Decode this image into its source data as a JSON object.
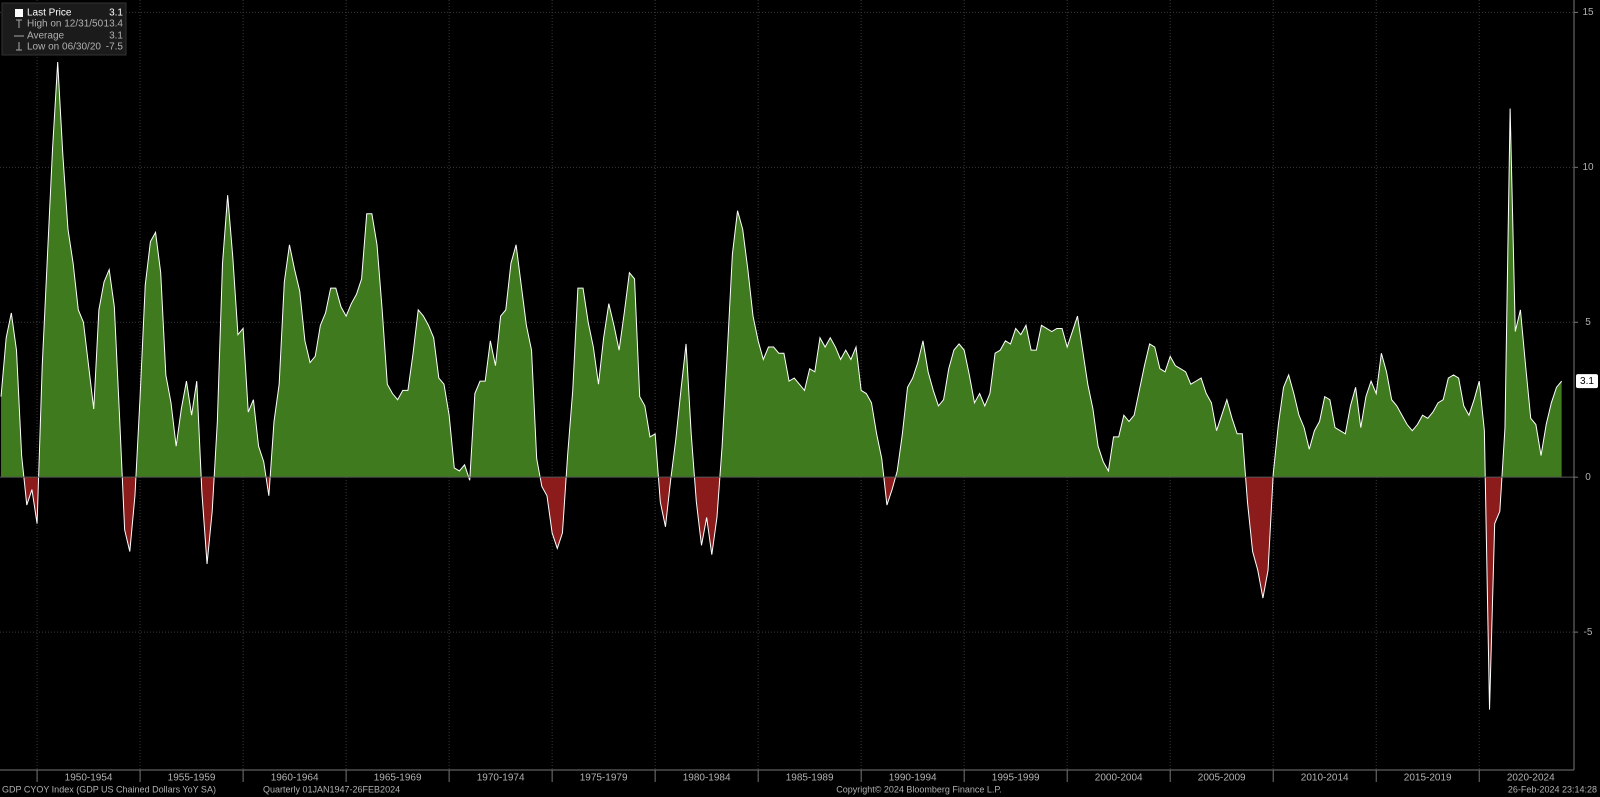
{
  "chart_data": {
    "type": "area",
    "legend": [
      {
        "label": "Last Price",
        "value": 3.1
      },
      {
        "label": "High on 12/31/50",
        "value": 13.4
      },
      {
        "label": "Average",
        "value": 3.1
      },
      {
        "label": "Low on 06/30/20",
        "value": -7.5
      }
    ],
    "source": "GDP CYOY Index (GDP US Chained Dollars YoY SA)",
    "frequency": "Quarterly 01JAN1947-26FEB2024",
    "copyright": "Copyright© 2024 Bloomberg Finance L.P.",
    "timestamp": "26-Feb-2024 23:14:28",
    "positive_color": "#3f7a1e",
    "negative_color": "#8c1c1c",
    "line_color": "#ffffff",
    "grid": true,
    "xlim": [
      1948.2,
      2024.6
    ],
    "ylim": [
      -9.45,
      15.4
    ],
    "yticks": [
      15,
      10,
      5,
      0,
      -5
    ],
    "xticks": [
      {
        "value": 1950,
        "label": "1950-1954"
      },
      {
        "value": 1955,
        "label": "1955-1959"
      },
      {
        "value": 1960,
        "label": "1960-1964"
      },
      {
        "value": 1965,
        "label": "1965-1969"
      },
      {
        "value": 1970,
        "label": "1970-1974"
      },
      {
        "value": 1975,
        "label": "1975-1979"
      },
      {
        "value": 1980,
        "label": "1980-1984"
      },
      {
        "value": 1985,
        "label": "1985-1989"
      },
      {
        "value": 1990,
        "label": "1990-1994"
      },
      {
        "value": 1995,
        "label": "1995-1999"
      },
      {
        "value": 2000,
        "label": "2000-2004"
      },
      {
        "value": 2005,
        "label": "2005-2009"
      },
      {
        "value": 2010,
        "label": "2010-2014"
      },
      {
        "value": 2015,
        "label": "2015-2019"
      },
      {
        "value": 2020,
        "label": "2020-2024"
      }
    ],
    "x": [
      1948.25,
      1948.5,
      1948.75,
      1949,
      1949.25,
      1949.5,
      1949.75,
      1950,
      1950.25,
      1950.5,
      1950.75,
      1951,
      1951.25,
      1951.5,
      1951.75,
      1952,
      1952.25,
      1952.5,
      1952.75,
      1953,
      1953.25,
      1953.5,
      1953.75,
      1954,
      1954.25,
      1954.5,
      1954.75,
      1955,
      1955.25,
      1955.5,
      1955.75,
      1956,
      1956.25,
      1956.5,
      1956.75,
      1957,
      1957.25,
      1957.5,
      1957.75,
      1958,
      1958.25,
      1958.5,
      1958.75,
      1959,
      1959.25,
      1959.5,
      1959.75,
      1960,
      1960.25,
      1960.5,
      1960.75,
      1961,
      1961.25,
      1961.5,
      1961.75,
      1962,
      1962.25,
      1962.5,
      1962.75,
      1963,
      1963.25,
      1963.5,
      1963.75,
      1964,
      1964.25,
      1964.5,
      1964.75,
      1965,
      1965.25,
      1965.5,
      1965.75,
      1966,
      1966.25,
      1966.5,
      1966.75,
      1967,
      1967.25,
      1967.5,
      1967.75,
      1968,
      1968.25,
      1968.5,
      1968.75,
      1969,
      1969.25,
      1969.5,
      1969.75,
      1970,
      1970.25,
      1970.5,
      1970.75,
      1971,
      1971.25,
      1971.5,
      1971.75,
      1972,
      1972.25,
      1972.5,
      1972.75,
      1973,
      1973.25,
      1973.5,
      1973.75,
      1974,
      1974.25,
      1974.5,
      1974.75,
      1975,
      1975.25,
      1975.5,
      1975.75,
      1976,
      1976.25,
      1976.5,
      1976.75,
      1977,
      1977.25,
      1977.5,
      1977.75,
      1978,
      1978.25,
      1978.5,
      1978.75,
      1979,
      1979.25,
      1979.5,
      1979.75,
      1980,
      1980.25,
      1980.5,
      1980.75,
      1981,
      1981.25,
      1981.5,
      1981.75,
      1982,
      1982.25,
      1982.5,
      1982.75,
      1983,
      1983.25,
      1983.5,
      1983.75,
      1984,
      1984.25,
      1984.5,
      1984.75,
      1985,
      1985.25,
      1985.5,
      1985.75,
      1986,
      1986.25,
      1986.5,
      1986.75,
      1987,
      1987.25,
      1987.5,
      1987.75,
      1988,
      1988.25,
      1988.5,
      1988.75,
      1989,
      1989.25,
      1989.5,
      1989.75,
      1990,
      1990.25,
      1990.5,
      1990.75,
      1991,
      1991.25,
      1991.5,
      1991.75,
      1992,
      1992.25,
      1992.5,
      1992.75,
      1993,
      1993.25,
      1993.5,
      1993.75,
      1994,
      1994.25,
      1994.5,
      1994.75,
      1995,
      1995.25,
      1995.5,
      1995.75,
      1996,
      1996.25,
      1996.5,
      1996.75,
      1997,
      1997.25,
      1997.5,
      1997.75,
      1998,
      1998.25,
      1998.5,
      1998.75,
      1999,
      1999.25,
      1999.5,
      1999.75,
      2000,
      2000.25,
      2000.5,
      2000.75,
      2001,
      2001.25,
      2001.5,
      2001.75,
      2002,
      2002.25,
      2002.5,
      2002.75,
      2003,
      2003.25,
      2003.5,
      2003.75,
      2004,
      2004.25,
      2004.5,
      2004.75,
      2005,
      2005.25,
      2005.5,
      2005.75,
      2006,
      2006.25,
      2006.5,
      2006.75,
      2007,
      2007.25,
      2007.5,
      2007.75,
      2008,
      2008.25,
      2008.5,
      2008.75,
      2009,
      2009.25,
      2009.5,
      2009.75,
      2010,
      2010.25,
      2010.5,
      2010.75,
      2011,
      2011.25,
      2011.5,
      2011.75,
      2012,
      2012.25,
      2012.5,
      2012.75,
      2013,
      2013.25,
      2013.5,
      2013.75,
      2014,
      2014.25,
      2014.5,
      2014.75,
      2015,
      2015.25,
      2015.5,
      2015.75,
      2016,
      2016.25,
      2016.5,
      2016.75,
      2017,
      2017.25,
      2017.5,
      2017.75,
      2018,
      2018.25,
      2018.5,
      2018.75,
      2019,
      2019.25,
      2019.5,
      2019.75,
      2020,
      2020.25,
      2020.5,
      2020.75,
      2021,
      2021.25,
      2021.5,
      2021.75,
      2022,
      2022.25,
      2022.5,
      2022.75,
      2023,
      2023.25,
      2023.5,
      2023.75,
      2024
    ],
    "values": [
      2.6,
      4.5,
      5.3,
      4.1,
      0.7,
      -0.9,
      -0.4,
      -1.5,
      3.6,
      7.1,
      10.6,
      13.4,
      10.4,
      8.0,
      6.9,
      5.4,
      5.0,
      3.6,
      2.2,
      5.4,
      6.3,
      6.7,
      5.5,
      2.0,
      -1.7,
      -2.4,
      -0.6,
      2.6,
      6.2,
      7.6,
      7.9,
      6.6,
      3.3,
      2.4,
      1.0,
      2.2,
      3.1,
      2.0,
      3.1,
      -0.5,
      -2.8,
      -1.1,
      1.8,
      6.9,
      9.1,
      7.1,
      4.6,
      4.8,
      2.1,
      2.5,
      1.0,
      0.5,
      -0.6,
      1.8,
      3.0,
      6.3,
      7.5,
      6.7,
      6.0,
      4.4,
      3.7,
      3.9,
      4.9,
      5.3,
      6.1,
      6.1,
      5.5,
      5.2,
      5.6,
      5.9,
      6.4,
      8.5,
      8.5,
      7.5,
      5.4,
      3.0,
      2.7,
      2.5,
      2.8,
      2.8,
      4.0,
      5.4,
      5.2,
      4.9,
      4.5,
      3.2,
      3.0,
      2.0,
      0.3,
      0.2,
      0.4,
      -0.1,
      2.7,
      3.1,
      3.1,
      4.4,
      3.6,
      5.2,
      5.4,
      6.9,
      7.5,
      6.2,
      4.9,
      4.1,
      0.6,
      -0.3,
      -0.6,
      -1.8,
      -2.3,
      -1.8,
      0.7,
      2.8,
      6.1,
      6.1,
      5.0,
      4.2,
      3.0,
      4.5,
      5.6,
      4.9,
      4.1,
      5.3,
      6.6,
      6.4,
      2.6,
      2.3,
      1.3,
      1.4,
      -0.8,
      -1.6,
      -0.1,
      1.2,
      2.8,
      4.3,
      1.4,
      -0.8,
      -2.2,
      -1.3,
      -2.5,
      -1.3,
      1.0,
      4.0,
      7.2,
      8.6,
      8.0,
      6.7,
      5.2,
      4.4,
      3.8,
      4.2,
      4.2,
      4.0,
      4.0,
      3.1,
      3.2,
      3.0,
      2.8,
      3.5,
      3.4,
      4.5,
      4.2,
      4.5,
      4.2,
      3.8,
      4.1,
      3.8,
      4.2,
      2.8,
      2.7,
      2.4,
      1.4,
      0.6,
      -0.9,
      -0.4,
      0.2,
      1.4,
      2.9,
      3.2,
      3.7,
      4.4,
      3.4,
      2.8,
      2.3,
      2.5,
      3.5,
      4.1,
      4.3,
      4.1,
      3.3,
      2.4,
      2.7,
      2.3,
      2.7,
      4.0,
      4.1,
      4.4,
      4.3,
      4.8,
      4.6,
      4.9,
      4.1,
      4.1,
      4.9,
      4.8,
      4.7,
      4.8,
      4.8,
      4.2,
      4.7,
      5.2,
      4.1,
      3.0,
      2.2,
      1.0,
      0.5,
      0.2,
      1.3,
      1.3,
      2.0,
      1.8,
      2.0,
      2.8,
      3.6,
      4.3,
      4.2,
      3.5,
      3.4,
      3.9,
      3.6,
      3.5,
      3.4,
      3.0,
      3.1,
      3.2,
      2.7,
      2.4,
      1.5,
      2.0,
      2.5,
      1.9,
      1.4,
      1.4,
      -0.8,
      -2.4,
      -3.0,
      -3.9,
      -3.0,
      0.1,
      1.7,
      2.9,
      3.3,
      2.7,
      2.0,
      1.6,
      0.9,
      1.5,
      1.8,
      2.6,
      2.5,
      1.6,
      1.5,
      1.4,
      2.3,
      2.9,
      1.6,
      2.6,
      3.1,
      2.7,
      4.0,
      3.4,
      2.5,
      2.3,
      2.0,
      1.7,
      1.5,
      1.7,
      2.0,
      1.9,
      2.1,
      2.4,
      2.5,
      3.2,
      3.3,
      3.2,
      2.3,
      2.0,
      2.5,
      3.1,
      1.5,
      -7.5,
      -1.5,
      -1.1,
      1.6,
      11.9,
      4.7,
      5.4,
      3.6,
      1.9,
      1.7,
      0.7,
      1.7,
      2.4,
      2.9,
      3.1
    ]
  }
}
